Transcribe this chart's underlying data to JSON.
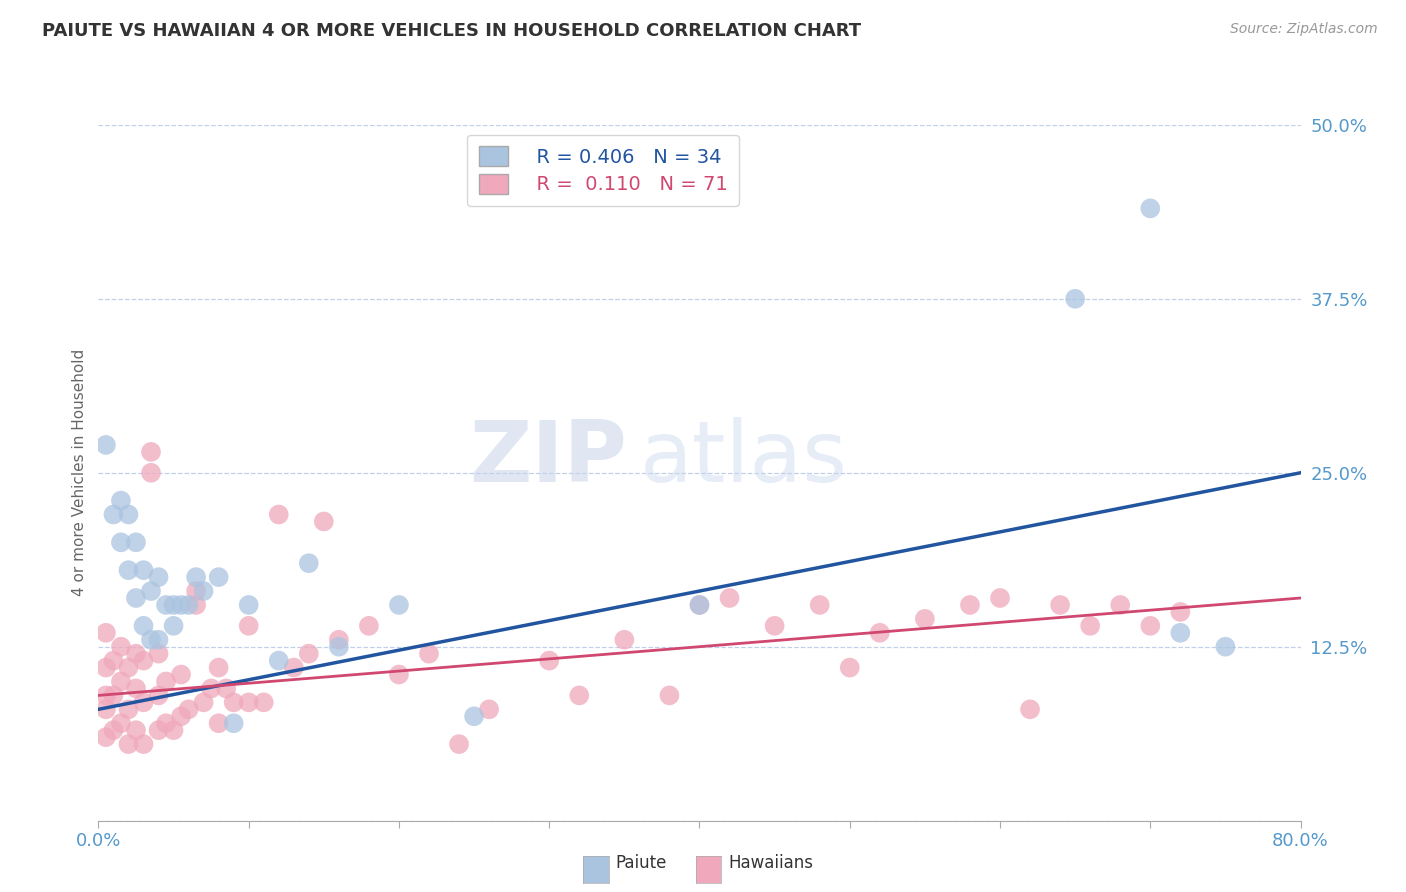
{
  "title": "PAIUTE VS HAWAIIAN 4 OR MORE VEHICLES IN HOUSEHOLD CORRELATION CHART",
  "source_text": "Source: ZipAtlas.com",
  "ylabel": "4 or more Vehicles in Household",
  "xlim": [
    0.0,
    0.8
  ],
  "ylim": [
    0.0,
    0.5
  ],
  "xticks": [
    0.0,
    0.1,
    0.2,
    0.3,
    0.4,
    0.5,
    0.6,
    0.7,
    0.8
  ],
  "xticklabels": [
    "0.0%",
    "",
    "",
    "",
    "",
    "",
    "",
    "",
    "80.0%"
  ],
  "ytick_positions": [
    0.0,
    0.125,
    0.25,
    0.375,
    0.5
  ],
  "ytick_labels": [
    "",
    "12.5%",
    "25.0%",
    "37.5%",
    "50.0%"
  ],
  "paiute_color": "#aac4e0",
  "hawaiian_color": "#f0a8bc",
  "paiute_line_color": "#2255a0",
  "hawaiian_line_color": "#d04870",
  "legend_R_paiute": "R = 0.406",
  "legend_N_paiute": "N = 34",
  "legend_R_hawaiian": "R =  0.110",
  "legend_N_hawaiian": "N = 71",
  "watermark_zip": "ZIP",
  "watermark_atlas": "atlas",
  "background_color": "#ffffff",
  "trend_paiute_x0": 0.0,
  "trend_paiute_y0": 0.08,
  "trend_paiute_x1": 0.8,
  "trend_paiute_y1": 0.25,
  "trend_hawaiian_x0": 0.0,
  "trend_hawaiian_y0": 0.09,
  "trend_hawaiian_x1": 0.8,
  "trend_hawaiian_y1": 0.16,
  "paiute_x": [
    0.005,
    0.01,
    0.015,
    0.015,
    0.02,
    0.02,
    0.025,
    0.025,
    0.03,
    0.03,
    0.035,
    0.035,
    0.04,
    0.04,
    0.045,
    0.05,
    0.05,
    0.055,
    0.06,
    0.065,
    0.07,
    0.08,
    0.09,
    0.1,
    0.12,
    0.14,
    0.16,
    0.2,
    0.25,
    0.4,
    0.65,
    0.7,
    0.72,
    0.75
  ],
  "paiute_y": [
    0.27,
    0.22,
    0.2,
    0.23,
    0.18,
    0.22,
    0.16,
    0.2,
    0.14,
    0.18,
    0.13,
    0.165,
    0.13,
    0.175,
    0.155,
    0.14,
    0.155,
    0.155,
    0.155,
    0.175,
    0.165,
    0.175,
    0.07,
    0.155,
    0.115,
    0.185,
    0.125,
    0.155,
    0.075,
    0.155,
    0.375,
    0.44,
    0.135,
    0.125
  ],
  "hawaiian_x": [
    0.005,
    0.005,
    0.005,
    0.005,
    0.005,
    0.01,
    0.01,
    0.01,
    0.015,
    0.015,
    0.015,
    0.02,
    0.02,
    0.02,
    0.025,
    0.025,
    0.025,
    0.03,
    0.03,
    0.03,
    0.035,
    0.035,
    0.04,
    0.04,
    0.04,
    0.045,
    0.045,
    0.05,
    0.055,
    0.055,
    0.06,
    0.065,
    0.065,
    0.07,
    0.075,
    0.08,
    0.08,
    0.085,
    0.09,
    0.1,
    0.1,
    0.11,
    0.12,
    0.13,
    0.14,
    0.15,
    0.16,
    0.18,
    0.2,
    0.22,
    0.24,
    0.26,
    0.3,
    0.32,
    0.35,
    0.38,
    0.4,
    0.42,
    0.45,
    0.48,
    0.5,
    0.52,
    0.55,
    0.58,
    0.6,
    0.62,
    0.64,
    0.66,
    0.68,
    0.7,
    0.72
  ],
  "hawaiian_y": [
    0.06,
    0.09,
    0.11,
    0.135,
    0.08,
    0.065,
    0.09,
    0.115,
    0.07,
    0.1,
    0.125,
    0.055,
    0.08,
    0.11,
    0.065,
    0.095,
    0.12,
    0.055,
    0.085,
    0.115,
    0.25,
    0.265,
    0.065,
    0.09,
    0.12,
    0.07,
    0.1,
    0.065,
    0.075,
    0.105,
    0.08,
    0.155,
    0.165,
    0.085,
    0.095,
    0.07,
    0.11,
    0.095,
    0.085,
    0.085,
    0.14,
    0.085,
    0.22,
    0.11,
    0.12,
    0.215,
    0.13,
    0.14,
    0.105,
    0.12,
    0.055,
    0.08,
    0.115,
    0.09,
    0.13,
    0.09,
    0.155,
    0.16,
    0.14,
    0.155,
    0.11,
    0.135,
    0.145,
    0.155,
    0.16,
    0.08,
    0.155,
    0.14,
    0.155,
    0.14,
    0.15
  ]
}
